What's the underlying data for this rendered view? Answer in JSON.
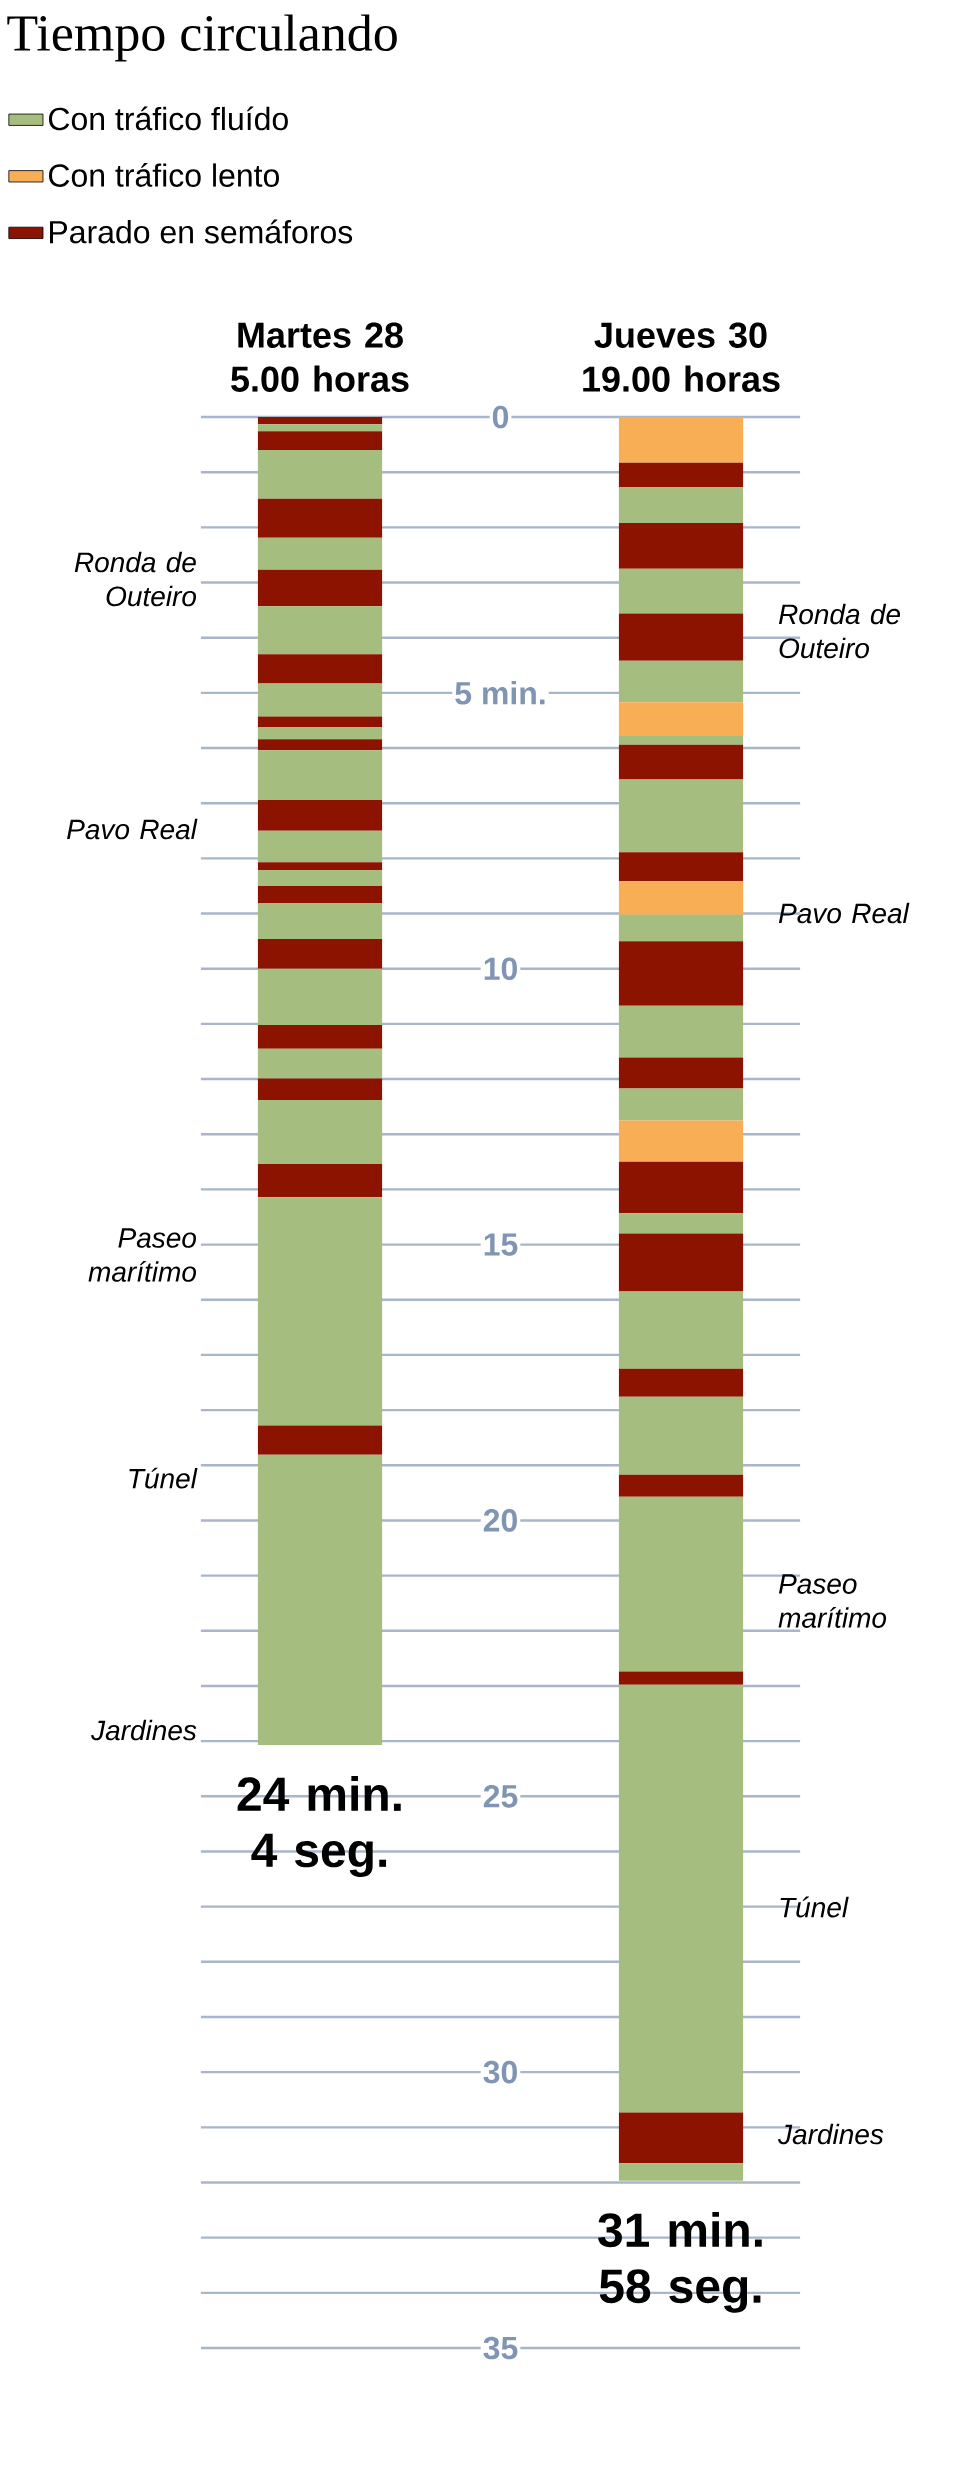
{
  "chart_data": {
    "type": "bar",
    "stacked": true,
    "title": "Tiempo circulando",
    "categories": [
      "Martes 28 5.00 horas",
      "Jueves 30 19.00 horas"
    ],
    "ylim": [
      35,
      0
    ],
    "yticks": [
      0,
      {
        "value": 1,
        "label": null
      },
      {
        "value": 2,
        "label": null
      },
      {
        "value": 3,
        "label": null
      },
      {
        "value": 4,
        "label": null
      },
      {
        "value": 5,
        "label": "5 min."
      },
      {
        "value": 6,
        "label": null
      },
      {
        "value": 7,
        "label": null
      },
      {
        "value": 8,
        "label": null
      },
      {
        "value": 9,
        "label": null
      },
      10,
      {
        "value": 11,
        "label": null
      },
      {
        "value": 12,
        "label": null
      },
      {
        "value": 13,
        "label": null
      },
      {
        "value": 14,
        "label": null
      },
      15,
      {
        "value": 16,
        "label": null
      },
      {
        "value": 17,
        "label": null
      },
      {
        "value": 18,
        "label": null
      },
      {
        "value": 19,
        "label": null
      },
      20,
      {
        "value": 21,
        "label": null
      },
      {
        "value": 22,
        "label": null
      },
      {
        "value": 23,
        "label": null
      },
      {
        "value": 24,
        "label": null
      },
      25,
      {
        "value": 26,
        "label": null
      },
      {
        "value": 27,
        "label": null
      },
      {
        "value": 28,
        "label": null
      },
      {
        "value": 29,
        "label": null
      },
      30,
      {
        "value": 31,
        "label": null
      },
      {
        "value": 32,
        "label": null
      },
      {
        "value": 33,
        "label": null
      },
      {
        "value": 34,
        "label": null
      },
      35
    ],
    "grid": "y",
    "legend": "top left",
    "series": [
      {
        "color": "#8c1300",
        "values": [
          0.13,
          null
        ]
      },
      {
        "name": "Con tráfico fluído",
        "color": "#a5bd7e",
        "values": [
          0.13,
          null
        ]
      },
      {
        "name": "Con tráfico lento",
        "color": "#f7ae55",
        "values": [
          null,
          0.83
        ]
      },
      {
        "name": "Parado en semáforos",
        "color": "#8c1300",
        "values": [
          0.34,
          null
        ]
      },
      {
        "color": "#a5bd7e",
        "values": [
          0.88,
          null
        ]
      },
      {
        "color": "#8c1300",
        "values": [
          0.71,
          null
        ]
      },
      {
        "color": "#a5bd7e",
        "values": [
          0.58,
          null
        ]
      },
      {
        "color": "#8c1300",
        "values": [
          0.66,
          null
        ]
      },
      {
        "color": "#a5bd7e",
        "values": [
          0.87,
          null
        ]
      },
      {
        "color": "#8c1300",
        "values": [
          0.53,
          null
        ]
      },
      {
        "color": "#a5bd7e",
        "values": [
          0.6,
          null
        ]
      },
      {
        "color": "#8c1300",
        "values": [
          0.19,
          null
        ]
      },
      {
        "color": "#a5bd7e",
        "values": [
          0.22,
          null
        ]
      },
      {
        "color": "#8c1300",
        "values": [
          0.2,
          null
        ]
      },
      {
        "color": "#a5bd7e",
        "values": [
          0.9,
          null
        ]
      },
      {
        "color": "#8c1300",
        "values": [
          0.56,
          null
        ]
      },
      {
        "color": "#a5bd7e",
        "values": [
          0.57,
          null
        ]
      },
      {
        "color": "#8c1300",
        "values": [
          0.14,
          null
        ]
      },
      {
        "color": "#a5bd7e",
        "values": [
          0.29,
          null
        ]
      },
      {
        "color": "#8c1300",
        "values": [
          0.31,
          null
        ]
      },
      {
        "color": "#a5bd7e",
        "values": [
          0.65,
          null
        ]
      },
      {
        "color": "#8c1300",
        "values": [
          0.54,
          null
        ]
      },
      {
        "color": "#a5bd7e",
        "values": [
          1.02,
          null
        ]
      },
      {
        "color": "#8c1300",
        "values": [
          0.43,
          null
        ]
      },
      {
        "color": "#a5bd7e",
        "values": [
          0.54,
          null
        ]
      },
      {
        "color": "#8c1300",
        "values": [
          0.39,
          null
        ]
      },
      {
        "color": "#a5bd7e",
        "values": [
          1.16,
          null
        ]
      },
      {
        "color": "#8c1300",
        "values": [
          0.6,
          null
        ]
      },
      {
        "color": "#a5bd7e",
        "values": [
          4.14,
          null
        ]
      },
      {
        "color": "#8c1300",
        "values": [
          0.53,
          null
        ]
      },
      {
        "color": "#a5bd7e",
        "values": [
          5.26,
          null
        ]
      },
      {
        "color": "#8c1300",
        "values": [
          null,
          0.44
        ]
      },
      {
        "color": "#a5bd7e",
        "values": [
          null,
          0.65
        ]
      },
      {
        "color": "#8c1300",
        "values": [
          null,
          0.83
        ]
      },
      {
        "color": "#a5bd7e",
        "values": [
          null,
          0.81
        ]
      },
      {
        "color": "#8c1300",
        "values": [
          null,
          0.86
        ]
      },
      {
        "color": "#a5bd7e",
        "values": [
          null,
          0.75
        ]
      },
      {
        "color": "#f7ae55",
        "values": [
          null,
          0.61
        ]
      },
      {
        "color": "#a5bd7e",
        "values": [
          null,
          0.16
        ]
      },
      {
        "color": "#8c1300",
        "values": [
          null,
          0.63
        ]
      },
      {
        "color": "#a5bd7e",
        "values": [
          null,
          1.32
        ]
      },
      {
        "color": "#8c1300",
        "values": [
          null,
          0.52
        ]
      },
      {
        "color": "#f7ae55",
        "values": [
          null,
          0.61
        ]
      },
      {
        "color": "#a5bd7e",
        "values": [
          null,
          0.48
        ]
      },
      {
        "color": "#8c1300",
        "values": [
          null,
          1.17
        ]
      },
      {
        "color": "#a5bd7e",
        "values": [
          null,
          0.94
        ]
      },
      {
        "color": "#8c1300",
        "values": [
          null,
          0.56
        ]
      },
      {
        "color": "#a5bd7e",
        "values": [
          null,
          0.58
        ]
      },
      {
        "color": "#f7ae55",
        "values": [
          null,
          0.75
        ]
      },
      {
        "color": "#8c1300",
        "values": [
          null,
          0.93
        ]
      },
      {
        "color": "#a5bd7e",
        "values": [
          null,
          0.37
        ]
      },
      {
        "color": "#8c1300",
        "values": [
          null,
          1.05
        ]
      },
      {
        "color": "#a5bd7e",
        "values": [
          null,
          1.4
        ]
      },
      {
        "color": "#8c1300",
        "values": [
          null,
          0.51
        ]
      },
      {
        "color": "#a5bd7e",
        "values": [
          null,
          1.41
        ]
      },
      {
        "color": "#8c1300",
        "values": [
          null,
          0.4
        ]
      },
      {
        "color": "#a5bd7e",
        "values": [
          null,
          3.17
        ]
      },
      {
        "color": "#8c1300",
        "values": [
          null,
          0.24
        ]
      },
      {
        "color": "#a5bd7e",
        "values": [
          null,
          7.75
        ]
      },
      {
        "color": "#8c1300",
        "values": [
          null,
          0.92
        ]
      },
      {
        "color": "#a5bd7e",
        "values": [
          null,
          0.32
        ]
      }
    ],
    "totals": [
      "24 min. 4 seg.",
      "31 min. 58 seg."
    ],
    "annotations": [
      "Ronda de Outeiro",
      "Pavo Real",
      "Paseo marítimo",
      "Túnel",
      "Jardines",
      "Ronda de Outeiro",
      "Pavo Real",
      "Paseo marítimo",
      "Túnel",
      "Jardines"
    ]
  }
}
